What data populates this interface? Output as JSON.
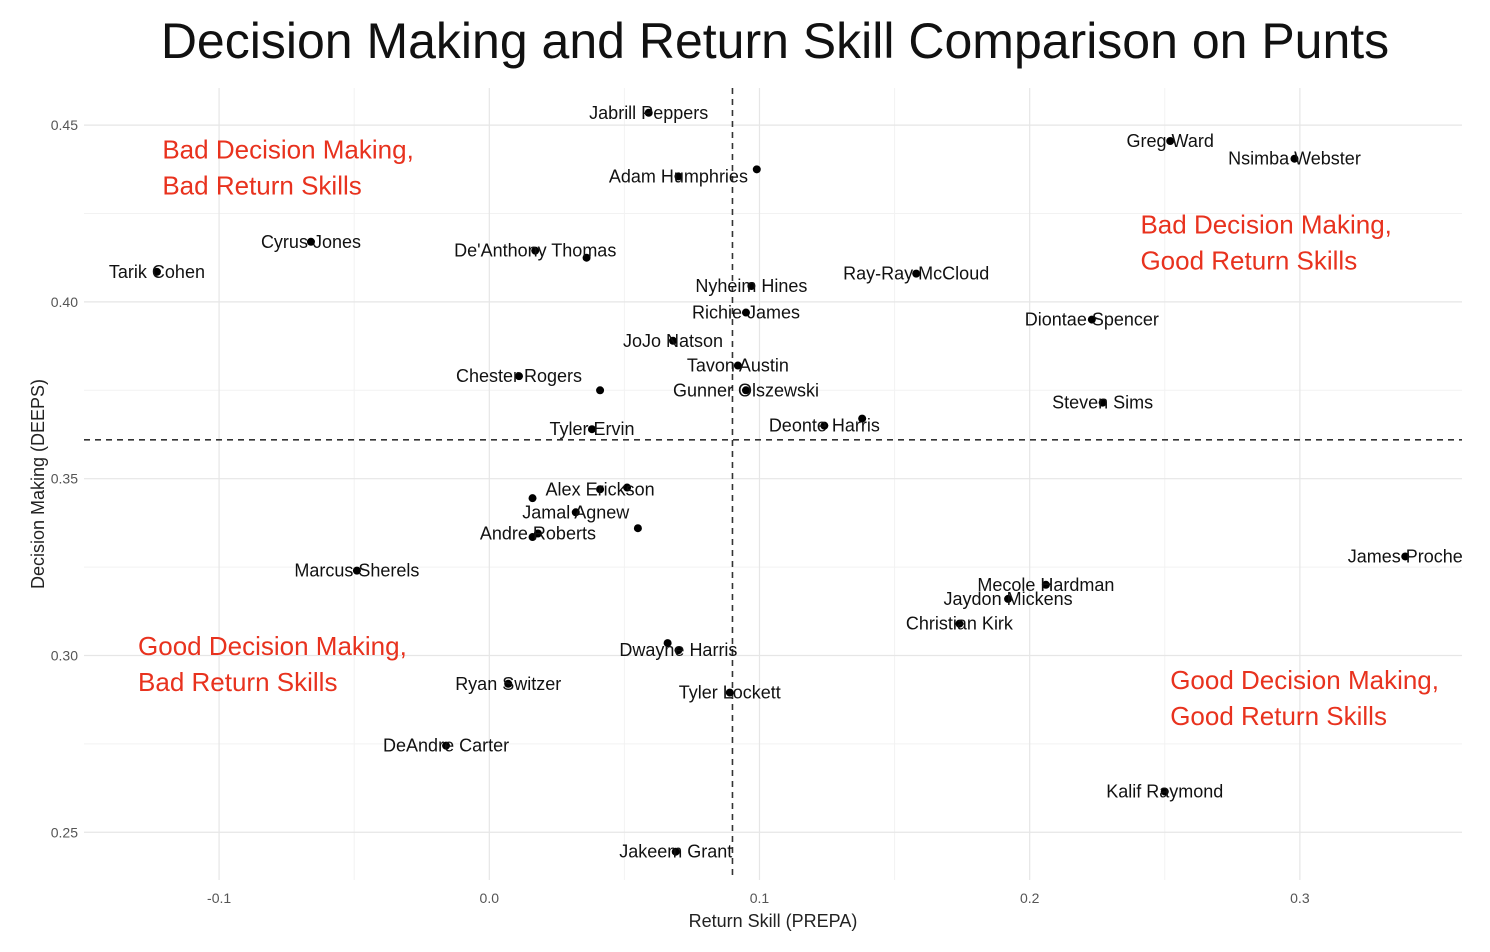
{
  "chart_data": {
    "type": "scatter",
    "title": "Decision Making and Return Skill Comparison on Punts",
    "xlabel": "Return Skill (PREPA)",
    "ylabel": "Decision Making (DEEPS)",
    "xlim": [
      -0.15,
      0.36
    ],
    "ylim": [
      0.2365,
      0.4605
    ],
    "xticks": [
      -0.1,
      0.0,
      0.1,
      0.2,
      0.3
    ],
    "xtick_labels": [
      "-0.1",
      "0.0",
      "0.1",
      "0.2",
      "0.3"
    ],
    "yticks": [
      0.25,
      0.3,
      0.35,
      0.4,
      0.45
    ],
    "ytick_labels": [
      "0.25",
      "0.30",
      "0.35",
      "0.40",
      "0.45"
    ],
    "grid": true,
    "reference_lines": {
      "x": 0.09,
      "y": 0.361
    },
    "quadrant_labels": [
      {
        "lines": [
          "Bad Decision Making,",
          "Bad Return Skills"
        ],
        "x": -0.121,
        "y": 0.4405
      },
      {
        "lines": [
          "Bad Decision Making,",
          "Good Return Skills"
        ],
        "x": 0.241,
        "y": 0.4193
      },
      {
        "lines": [
          "Good Decision Making,",
          "Bad Return Skills"
        ],
        "x": -0.13,
        "y": 0.3001
      },
      {
        "lines": [
          "Good Decision Making,",
          "Good Return Skills"
        ],
        "x": 0.252,
        "y": 0.2905
      }
    ],
    "points": [
      {
        "label": "Jabrill Peppers",
        "x": 0.059,
        "y": 0.4535
      },
      {
        "label": "Adam Humphries",
        "x": 0.07,
        "y": 0.4355
      },
      {
        "label": "",
        "x": 0.099,
        "y": 0.4375
      },
      {
        "label": "Greg Ward",
        "x": 0.252,
        "y": 0.4455
      },
      {
        "label": "Nsimba Webster",
        "x": 0.298,
        "y": 0.4405
      },
      {
        "label": "Cyrus Jones",
        "x": -0.066,
        "y": 0.417
      },
      {
        "label": "De'Anthony Thomas",
        "x": 0.017,
        "y": 0.4145
      },
      {
        "label": "",
        "x": 0.036,
        "y": 0.4125
      },
      {
        "label": "Tarik Cohen",
        "x": -0.123,
        "y": 0.4085
      },
      {
        "label": "Ray-Ray McCloud",
        "x": 0.158,
        "y": 0.408
      },
      {
        "label": "Nyheim Hines",
        "x": 0.097,
        "y": 0.4045
      },
      {
        "label": "Richie James",
        "x": 0.095,
        "y": 0.397
      },
      {
        "label": "Diontae Spencer",
        "x": 0.223,
        "y": 0.395
      },
      {
        "label": "JoJo Natson",
        "x": 0.068,
        "y": 0.389
      },
      {
        "label": "Tavon Austin",
        "x": 0.092,
        "y": 0.382
      },
      {
        "label": "Chester Rogers",
        "x": 0.011,
        "y": 0.379
      },
      {
        "label": "",
        "x": 0.041,
        "y": 0.375
      },
      {
        "label": "Gunner Olszewski",
        "x": 0.095,
        "y": 0.375
      },
      {
        "label": "Steven Sims",
        "x": 0.227,
        "y": 0.3715
      },
      {
        "label": "",
        "x": 0.138,
        "y": 0.367
      },
      {
        "label": "Deonte Harris",
        "x": 0.124,
        "y": 0.365
      },
      {
        "label": "Tyler Ervin",
        "x": 0.038,
        "y": 0.364
      },
      {
        "label": "Alex Erickson",
        "x": 0.041,
        "y": 0.347
      },
      {
        "label": "",
        "x": 0.051,
        "y": 0.3475
      },
      {
        "label": "",
        "x": 0.016,
        "y": 0.3445
      },
      {
        "label": "Jamal Agnew",
        "x": 0.032,
        "y": 0.3405
      },
      {
        "label": "",
        "x": 0.055,
        "y": 0.336
      },
      {
        "label": "Andre Roberts",
        "x": 0.018,
        "y": 0.3345
      },
      {
        "label": "",
        "x": 0.016,
        "y": 0.3335
      },
      {
        "label": "James Proche",
        "x": 0.339,
        "y": 0.328
      },
      {
        "label": "Marcus Sherels",
        "x": -0.049,
        "y": 0.324
      },
      {
        "label": "Mecole Hardman",
        "x": 0.206,
        "y": 0.32
      },
      {
        "label": "Jaydon Mickens",
        "x": 0.192,
        "y": 0.316
      },
      {
        "label": "Christian Kirk",
        "x": 0.174,
        "y": 0.309
      },
      {
        "label": "",
        "x": 0.066,
        "y": 0.3035
      },
      {
        "label": "Dwayne Harris",
        "x": 0.07,
        "y": 0.3015
      },
      {
        "label": "Ryan Switzer",
        "x": 0.007,
        "y": 0.292
      },
      {
        "label": "Tyler Lockett",
        "x": 0.089,
        "y": 0.2895
      },
      {
        "label": "DeAndre Carter",
        "x": -0.016,
        "y": 0.2745
      },
      {
        "label": "Kalif Raymond",
        "x": 0.25,
        "y": 0.2615
      },
      {
        "label": "Jakeem Grant",
        "x": 0.069,
        "y": 0.2445
      }
    ]
  }
}
